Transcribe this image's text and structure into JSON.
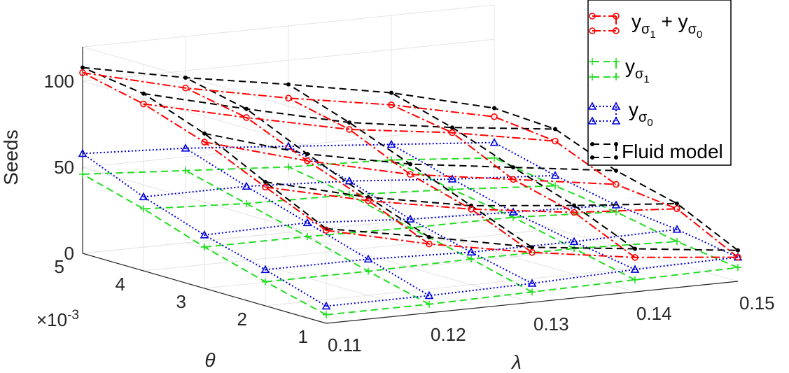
{
  "chart_data": {
    "type": "3d-line",
    "title": "",
    "xlabel": "λ",
    "ylabel": "θ",
    "zlabel": "Seeds",
    "x_ticks": [
      "0.11",
      "0.12",
      "0.13",
      "0.14",
      "0.15"
    ],
    "y_ticks": [
      "1",
      "2",
      "3",
      "4",
      "5"
    ],
    "y_multiplier_base": "×10",
    "y_multiplier_exp": "-3",
    "z_ticks": [
      "0",
      "50",
      "100"
    ],
    "x_values": [
      0.11,
      0.12,
      0.13,
      0.14,
      0.15
    ],
    "y_values": [
      0.001,
      0.002,
      0.003,
      0.004,
      0.005
    ],
    "zlim": [
      0,
      120
    ],
    "grid": true,
    "legend_position": "top-right",
    "legend": [
      {
        "main": "y",
        "sub": "σ",
        "subsub": "1",
        "joiner": " + ",
        "main2": "y",
        "sub2": "σ",
        "subsub2": "0"
      },
      {
        "main": "y",
        "sub": "σ",
        "subsub": "1"
      },
      {
        "main": "y",
        "sub": "σ",
        "subsub": "0"
      },
      {
        "text": "Fluid model"
      }
    ],
    "series": [
      {
        "name": "yσ1 + yσ0",
        "color": "#ff0000",
        "marker": "circle",
        "z": [
          [
            54,
            40,
            29,
            20,
            14
          ],
          [
            69,
            55,
            44,
            36,
            32
          ],
          [
            85,
            68,
            54,
            45,
            36
          ],
          [
            97,
            83,
            70,
            62,
            51
          ],
          [
            105,
            90,
            78,
            68,
            55
          ]
        ]
      },
      {
        "name": "yσ1",
        "color": "#22dd22",
        "marker": "plus",
        "z": [
          [
            5,
            5,
            6,
            7,
            8
          ],
          [
            14,
            14,
            15,
            15,
            13
          ],
          [
            24,
            24,
            23,
            23,
            20
          ],
          [
            36,
            33,
            32,
            29,
            25
          ],
          [
            46,
            42,
            38,
            36,
            31
          ]
        ]
      },
      {
        "name": "yσ0",
        "color": "#0000dd",
        "marker": "triangle",
        "z": [
          [
            10,
            10,
            11,
            13,
            14
          ],
          [
            21,
            21,
            19,
            19,
            20
          ],
          [
            31,
            32,
            28,
            26,
            24
          ],
          [
            43,
            43,
            40,
            35,
            31
          ],
          [
            58,
            55,
            50,
            45,
            40
          ]
        ]
      },
      {
        "name": "Fluid model",
        "color": "#000000",
        "marker": "dot",
        "z": [
          [
            55,
            44,
            32,
            25,
            18
          ],
          [
            72,
            57,
            46,
            40,
            35
          ],
          [
            90,
            72,
            60,
            52,
            44
          ],
          [
            103,
            88,
            74,
            65,
            58
          ],
          [
            108,
            96,
            86,
            75,
            60
          ]
        ]
      }
    ]
  }
}
